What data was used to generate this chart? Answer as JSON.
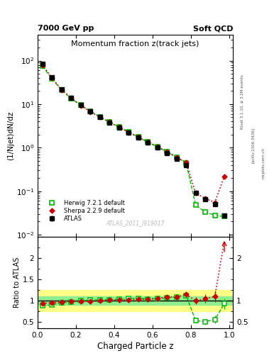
{
  "title_main": "Momentum fraction z(track jets)",
  "header_left": "7000 GeV pp",
  "header_right": "Soft QCD",
  "ylabel_main": "(1/Njet)dN/dz",
  "ylabel_ratio": "Ratio to ATLAS",
  "xlabel": "Charged Particle z",
  "watermark": "ATLAS_2011_I919017",
  "right_label_top": "Rivet 3.1.10, ≥ 3.2M events",
  "right_label_mid": "[arXiv:1306.3436]",
  "right_label_bot": "mcplots.cern.ch",
  "atlas_z": [
    0.025,
    0.075,
    0.125,
    0.175,
    0.225,
    0.275,
    0.325,
    0.375,
    0.425,
    0.475,
    0.525,
    0.575,
    0.625,
    0.675,
    0.725,
    0.775,
    0.825,
    0.875,
    0.925,
    0.975
  ],
  "atlas_y": [
    85.0,
    42.0,
    22.0,
    14.0,
    9.5,
    6.8,
    5.0,
    3.8,
    2.9,
    2.2,
    1.7,
    1.3,
    1.0,
    0.75,
    0.55,
    0.4,
    0.09,
    0.065,
    0.05,
    0.028
  ],
  "atlas_yerr": [
    3.0,
    1.5,
    0.8,
    0.5,
    0.35,
    0.25,
    0.18,
    0.14,
    0.11,
    0.08,
    0.065,
    0.05,
    0.04,
    0.03,
    0.022,
    0.016,
    0.004,
    0.003,
    0.003,
    0.002
  ],
  "herwig_y": [
    75.0,
    38.0,
    21.0,
    13.5,
    9.5,
    6.9,
    5.1,
    3.9,
    3.0,
    2.3,
    1.75,
    1.35,
    1.05,
    0.8,
    0.6,
    0.45,
    0.048,
    0.033,
    0.028,
    0.026
  ],
  "sherpa_y": [
    80.0,
    40.0,
    21.5,
    13.8,
    9.3,
    6.7,
    5.0,
    3.85,
    2.95,
    2.25,
    1.75,
    1.35,
    1.05,
    0.82,
    0.6,
    0.46,
    0.09,
    0.068,
    0.055,
    0.22
  ],
  "herwig_ratio": [
    0.882,
    0.905,
    0.955,
    0.964,
    1.0,
    1.015,
    1.02,
    1.026,
    1.034,
    1.045,
    1.059,
    1.038,
    1.05,
    1.067,
    1.091,
    1.125,
    0.535,
    0.508,
    0.56,
    0.929
  ],
  "herwig_rerr": [
    0.035,
    0.03,
    0.028,
    0.025,
    0.022,
    0.022,
    0.022,
    0.022,
    0.025,
    0.028,
    0.03,
    0.032,
    0.038,
    0.042,
    0.05,
    0.06,
    0.06,
    0.07,
    0.09,
    0.12
  ],
  "sherpa_ratio": [
    0.941,
    0.952,
    0.977,
    0.986,
    0.979,
    0.985,
    1.0,
    1.013,
    1.017,
    1.023,
    1.029,
    1.038,
    1.05,
    1.093,
    1.09,
    1.15,
    1.0,
    1.046,
    1.1,
    7.86
  ],
  "sherpa_rerr": [
    0.03,
    0.028,
    0.025,
    0.022,
    0.022,
    0.022,
    0.022,
    0.022,
    0.025,
    0.028,
    0.03,
    0.032,
    0.038,
    0.042,
    0.05,
    0.06,
    0.08,
    0.1,
    0.13,
    0.5
  ],
  "atlas_color": "#000000",
  "herwig_color": "#00bb00",
  "sherpa_color": "#cc0000",
  "band_green": "#90ee90",
  "band_yellow": "#ffff88",
  "ylim_main": [
    0.009,
    400
  ],
  "ylim_ratio": [
    0.35,
    2.5
  ],
  "xlim": [
    0.0,
    1.02
  ]
}
